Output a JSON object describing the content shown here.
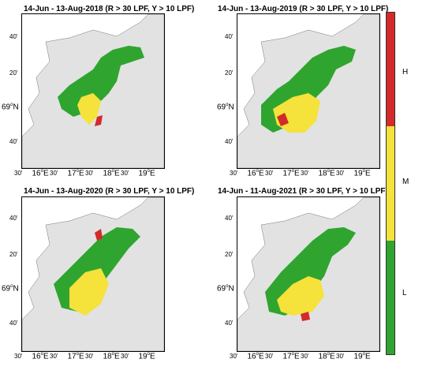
{
  "panels": [
    {
      "title": "14-Jun - 13-Aug-2018 (R > 30 LPF, Y > 10 LPF)"
    },
    {
      "title": "14-Jun - 13-Aug-2019 (R > 30 LPF, Y > 10 LPF)"
    },
    {
      "title": "14-Jun - 13-Aug-2020 (R > 30 LPF, Y > 10 LPF)"
    },
    {
      "title": "14-Jun - 11-Aug-2021 (R > 30 LPF, Y > 10 LPF)"
    }
  ],
  "lat_labels": [
    "40'",
    "20'",
    "69",
    "40'"
  ],
  "lat_major_suffix": "N",
  "lat_major_sup": "o",
  "lon_labels": [
    "30'",
    "16",
    "30'",
    "17",
    "30'",
    "18",
    "30'",
    "19"
  ],
  "lon_major_suffix": "E",
  "lon_major_sup": "o",
  "colorbar": {
    "labels": [
      "H",
      "M",
      "L"
    ],
    "colors": {
      "H": "#d42a2a",
      "M": "#f5e23a",
      "L": "#2fa52f"
    }
  },
  "colors": {
    "land": "#e2e2e2",
    "sea": "#ffffff",
    "low": "#2fa52f",
    "medium": "#f5e23a",
    "high": "#d42a2a"
  }
}
